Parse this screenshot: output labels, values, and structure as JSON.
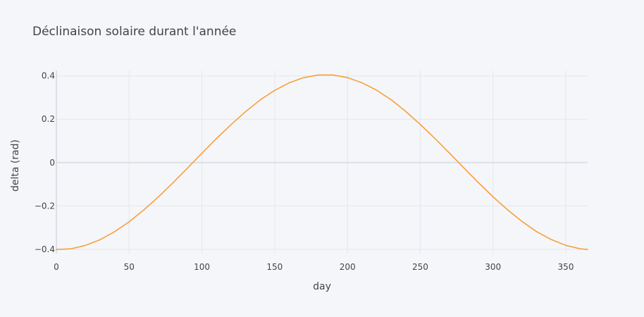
{
  "chart_data": {
    "type": "line",
    "title": "Déclinaison solaire durant l'année",
    "xlabel": "day",
    "ylabel": "delta (rad)",
    "xlim": [
      0,
      365
    ],
    "ylim": [
      -0.42,
      0.425
    ],
    "x_ticks": [
      0,
      50,
      100,
      150,
      200,
      250,
      300,
      350
    ],
    "x_tick_labels": [
      "0",
      "50",
      "100",
      "150",
      "200",
      "250",
      "300",
      "350"
    ],
    "y_ticks": [
      -0.4,
      -0.2,
      0,
      0.2,
      0.4
    ],
    "y_tick_labels": [
      "−0.4",
      "−0.2",
      "0",
      "0.2",
      "0.4"
    ],
    "grid": true,
    "legend": "none",
    "series": [
      {
        "color": "#f7a03c",
        "x": [
          0,
          10,
          20,
          30,
          40,
          50,
          60,
          70,
          80,
          90,
          100,
          110,
          120,
          130,
          140,
          150,
          160,
          170,
          180,
          190,
          200,
          210,
          220,
          230,
          240,
          250,
          260,
          270,
          280,
          290,
          300,
          310,
          320,
          330,
          340,
          350,
          360,
          365
        ],
        "y": [
          -0.401,
          -0.398,
          -0.382,
          -0.356,
          -0.319,
          -0.273,
          -0.219,
          -0.159,
          -0.094,
          -0.026,
          0.043,
          0.111,
          0.175,
          0.235,
          0.289,
          0.333,
          0.368,
          0.392,
          0.404,
          0.404,
          0.392,
          0.368,
          0.334,
          0.29,
          0.236,
          0.176,
          0.112,
          0.044,
          -0.025,
          -0.093,
          -0.158,
          -0.218,
          -0.272,
          -0.319,
          -0.355,
          -0.382,
          -0.398,
          -0.401
        ]
      }
    ]
  }
}
